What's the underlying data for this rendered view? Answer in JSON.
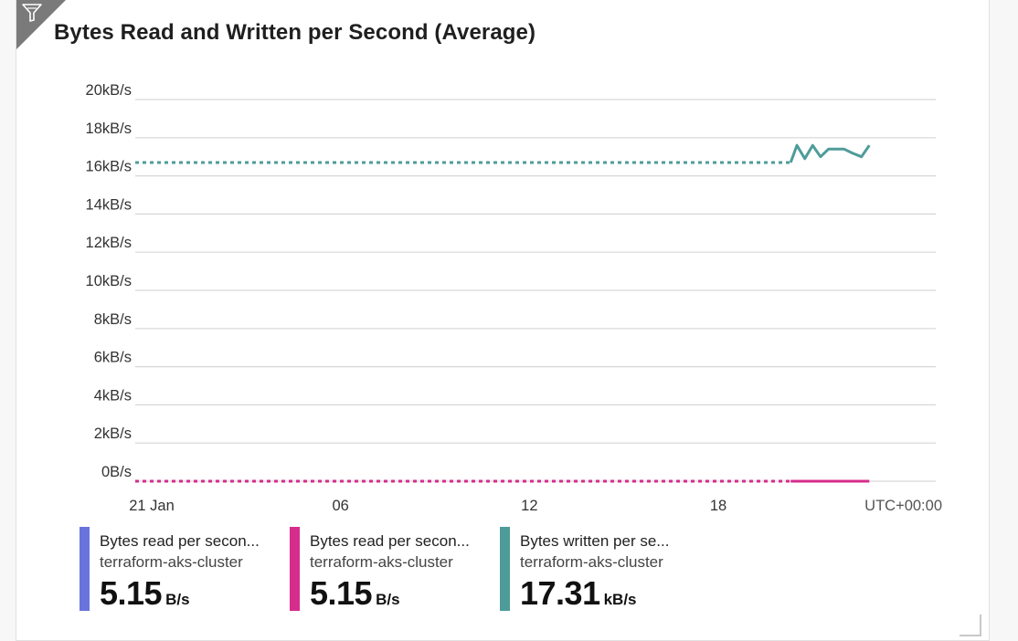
{
  "chart_data": {
    "type": "line",
    "title": "Bytes Read and Written per Second (Average)",
    "y_unit": "kB/s",
    "ylim": [
      0,
      20
    ],
    "y_ticks": [
      {
        "value": 0,
        "label": "0B/s"
      },
      {
        "value": 2,
        "label": "2kB/s"
      },
      {
        "value": 4,
        "label": "4kB/s"
      },
      {
        "value": 6,
        "label": "6kB/s"
      },
      {
        "value": 8,
        "label": "8kB/s"
      },
      {
        "value": 10,
        "label": "10kB/s"
      },
      {
        "value": 12,
        "label": "12kB/s"
      },
      {
        "value": 14,
        "label": "14kB/s"
      },
      {
        "value": 16,
        "label": "16kB/s"
      },
      {
        "value": 18,
        "label": "18kB/s"
      },
      {
        "value": 20,
        "label": "20kB/s"
      }
    ],
    "x_unit": "day (Jan)",
    "xlim": [
      19.6,
      42.3
    ],
    "x_ticks": [
      {
        "value": 21,
        "label": "21 Jan"
      },
      {
        "value": 27,
        "label": "06"
      },
      {
        "value": 33,
        "label": "12"
      },
      {
        "value": 39,
        "label": "18"
      }
    ],
    "timezone_label": "UTC+00:00",
    "grid": true,
    "series": [
      {
        "name": "Bytes written per second",
        "color": "#4e9c9a",
        "gap_value": 16.7,
        "gap_x": [
          20.0,
          41.3
        ],
        "x": [
          41.3,
          41.5,
          41.75,
          42.0,
          42.25,
          42.5,
          42.75,
          43.0,
          43.25,
          43.55,
          43.8
        ],
        "values": [
          16.7,
          17.6,
          16.9,
          17.6,
          17.0,
          17.4,
          17.4,
          17.4,
          17.2,
          17.0,
          17.6
        ]
      },
      {
        "name": "Bytes read per second",
        "color": "#d62c8c",
        "gap_value": 0.0,
        "gap_x": [
          20.0,
          41.3
        ],
        "x": [
          41.3,
          43.8
        ],
        "values": [
          0.0,
          0.0
        ]
      }
    ]
  },
  "legend": [
    {
      "name": "Bytes read per secon...",
      "resource": "terraform-aks-cluster",
      "value": "5.15",
      "unit": "B/s",
      "color": "#6a73dc"
    },
    {
      "name": "Bytes read per secon...",
      "resource": "terraform-aks-cluster",
      "value": "5.15",
      "unit": "B/s",
      "color": "#d62c8c"
    },
    {
      "name": "Bytes written per se...",
      "resource": "terraform-aks-cluster",
      "value": "17.31",
      "unit": "kB/s",
      "color": "#4e9c9a"
    }
  ]
}
